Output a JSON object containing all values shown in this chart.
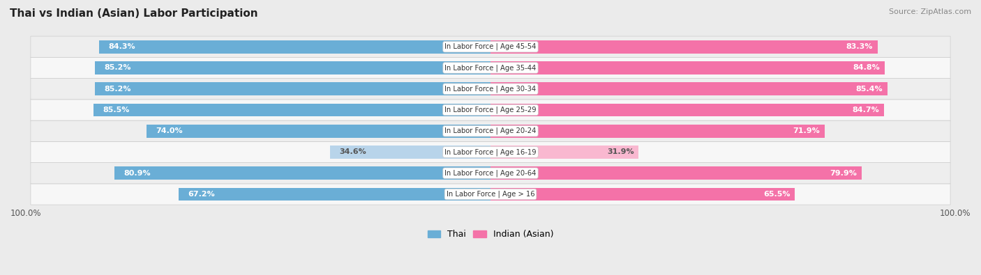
{
  "title": "Thai vs Indian (Asian) Labor Participation",
  "source": "Source: ZipAtlas.com",
  "categories": [
    "In Labor Force | Age > 16",
    "In Labor Force | Age 20-64",
    "In Labor Force | Age 16-19",
    "In Labor Force | Age 20-24",
    "In Labor Force | Age 25-29",
    "In Labor Force | Age 30-34",
    "In Labor Force | Age 35-44",
    "In Labor Force | Age 45-54"
  ],
  "thai_values": [
    67.2,
    80.9,
    34.6,
    74.0,
    85.5,
    85.2,
    85.2,
    84.3
  ],
  "indian_values": [
    65.5,
    79.9,
    31.9,
    71.9,
    84.7,
    85.4,
    84.8,
    83.3
  ],
  "thai_color_strong": "#6aaed6",
  "thai_color_light": "#b8d4ea",
  "indian_color_strong": "#f472a8",
  "indian_color_light": "#f9b8d0",
  "bg_color": "#ebebeb",
  "row_colors": [
    "#f7f7f7",
    "#eeeeee"
  ],
  "bar_height": 0.62,
  "legend_thai": "Thai",
  "legend_indian": "Indian (Asian)",
  "threshold_light": 50
}
